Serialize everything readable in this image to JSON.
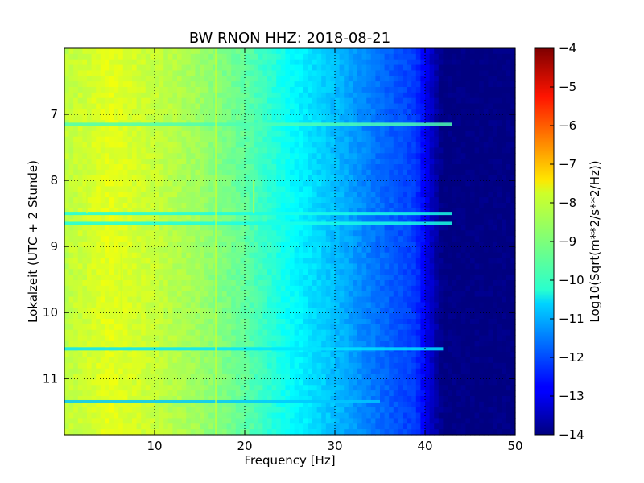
{
  "chart_data": {
    "type": "heatmap",
    "title": "BW RNON HHZ: 2018-08-21",
    "xlabel": "Frequency [Hz]",
    "ylabel": "Lokalzeit (UTC + 2 Stunde)",
    "xlim": [
      0,
      50
    ],
    "ylim": [
      11.85,
      6.0
    ],
    "x_ticks": [
      10,
      20,
      30,
      40,
      50
    ],
    "y_ticks": [
      7,
      8,
      9,
      10,
      11
    ],
    "grid": true,
    "colormap": "jet",
    "colorbar": {
      "label": "Log10(Sqrt(m**2/s**2/Hz))",
      "range": [
        -14,
        -4
      ],
      "ticks": [
        -4,
        -5,
        -6,
        -7,
        -8,
        -9,
        -10,
        -11,
        -12,
        -13,
        -14
      ]
    },
    "background_profile": {
      "frequency_hz": [
        0,
        5,
        10,
        15,
        20,
        25,
        30,
        35,
        39,
        41,
        42,
        50
      ],
      "log10_amplitude": [
        -8.4,
        -8.0,
        -8.3,
        -8.7,
        -9.3,
        -10.2,
        -10.9,
        -11.7,
        -12.2,
        -13.5,
        -14,
        -14
      ]
    },
    "horizontal_bands": [
      {
        "time": 7.15,
        "f_max_hz": 43,
        "log10_amplitude": -9.5
      },
      {
        "time": 8.5,
        "f_max_hz": 43,
        "log10_amplitude": -10.0
      },
      {
        "time": 8.65,
        "f_max_hz": 43,
        "log10_amplitude": -10.0
      },
      {
        "time": 10.55,
        "f_max_hz": 42,
        "log10_amplitude": -10.5
      },
      {
        "time": 11.35,
        "f_max_hz": 35,
        "log10_amplitude": -10.8
      }
    ],
    "vertical_lines": [
      {
        "frequency_hz": 2.5,
        "t_start": 8.0,
        "t_end": 8.5
      },
      {
        "frequency_hz": 6.3,
        "t_start": 9.1,
        "t_end": 10.1
      },
      {
        "frequency_hz": 16.8,
        "t_start": 6.0,
        "t_end": 11.85
      },
      {
        "frequency_hz": 21.0,
        "t_start": 8.0,
        "t_end": 8.5
      }
    ]
  }
}
